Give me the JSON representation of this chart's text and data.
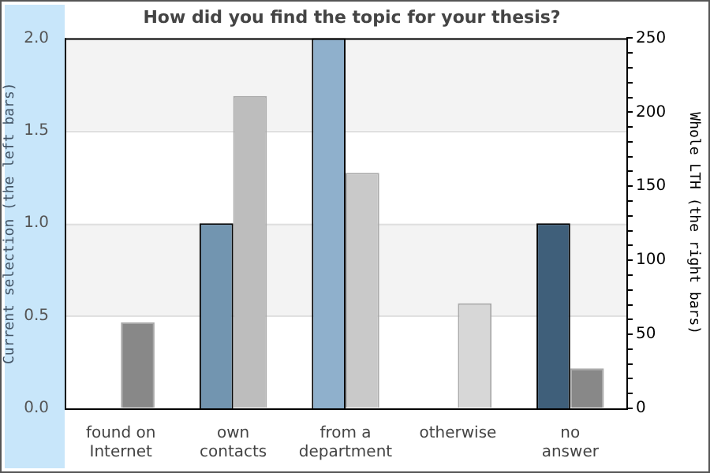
{
  "chart_data": {
    "type": "bar",
    "title": "How did you find the topic for your thesis?",
    "categories": [
      "found on Internet",
      "own contacts",
      "from a department",
      "otherwise",
      "no answer"
    ],
    "ylabel": "Current selection (the left bars)",
    "y2label": "Whole LTH (the right bars)",
    "series": [
      {
        "colors": [
          "#7295b0",
          "#7295b0",
          "#8fb0cc",
          "#8fb0cc",
          "#3f5f7a"
        ],
        "values": [
          0,
          1,
          2,
          0,
          1
        ]
      },
      {
        "colors": [
          "#888888",
          "#bdbdbd",
          "#c9c9c9",
          "#d7d7d7",
          "#888888"
        ],
        "values": [
          58,
          211,
          159,
          71,
          27
        ],
        "axis": "y2"
      }
    ],
    "ylim": [
      0,
      2
    ],
    "yticks": [
      {
        "value": 0.5,
        "label": "0.5"
      },
      {
        "value": 1,
        "label": "1.0"
      },
      {
        "value": 1.5,
        "label": "1.5"
      },
      {
        "value": 2,
        "label": "2.0"
      },
      {
        "value": 0,
        "label": "0.0"
      }
    ],
    "y2lim": [
      0,
      250
    ],
    "y2ticks": [
      0,
      {
        "value": 10,
        "label": null
      },
      {
        "value": 20,
        "label": null
      },
      {
        "value": 30,
        "label": null
      },
      {
        "value": 40,
        "label": null
      },
      50,
      {
        "value": 60,
        "label": null
      },
      {
        "value": 70,
        "label": null
      },
      {
        "value": 80,
        "label": null
      },
      {
        "value": 90,
        "label": null
      },
      100,
      {
        "value": 110,
        "label": null
      },
      {
        "value": 120,
        "label": null
      },
      {
        "value": 130,
        "label": null
      },
      {
        "value": 140,
        "label": null
      },
      150,
      {
        "value": 160,
        "label": null
      },
      {
        "value": 170,
        "label": null
      },
      {
        "value": 180,
        "label": null
      },
      {
        "value": 190,
        "label": null
      },
      200,
      {
        "value": 210,
        "label": null
      },
      {
        "value": 220,
        "label": null
      },
      {
        "value": 230,
        "label": null
      },
      {
        "value": 240,
        "label": null
      },
      250
    ],
    "grid": "y",
    "legend": false
  }
}
